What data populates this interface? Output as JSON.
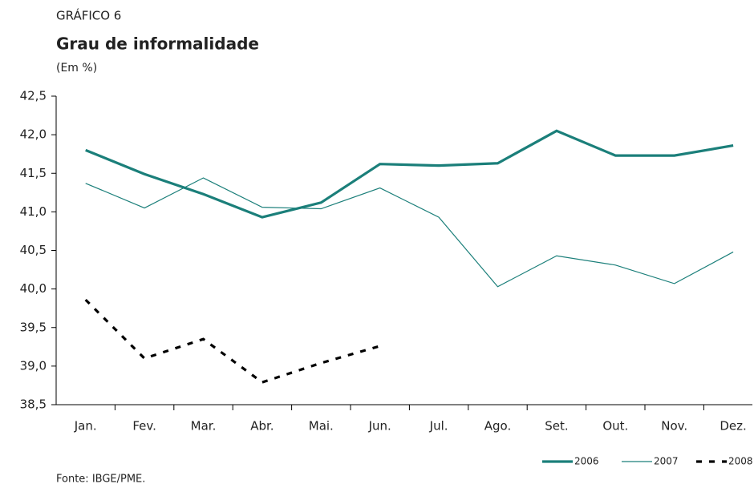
{
  "chart_data": {
    "type": "line",
    "label": "GRÁFICO 6",
    "title": "Grau de informalidade",
    "subtitle": "(Em %)",
    "source": "Fonte: IBGE/PME.",
    "categories": [
      "Jan.",
      "Fev.",
      "Mar.",
      "Abr.",
      "Mai.",
      "Jun.",
      "Jul.",
      "Ago.",
      "Set.",
      "Out.",
      "Nov.",
      "Dez."
    ],
    "series": [
      {
        "name": "2006",
        "color": "#1b7f7a",
        "style": "thick",
        "values": [
          41.8,
          41.49,
          41.23,
          40.93,
          41.12,
          41.62,
          41.6,
          41.63,
          42.05,
          41.73,
          41.73,
          41.86
        ]
      },
      {
        "name": "2007",
        "color": "#1b7f7a",
        "style": "thin",
        "values": [
          41.37,
          41.05,
          41.44,
          41.06,
          41.04,
          41.31,
          40.93,
          40.03,
          40.43,
          40.31,
          40.07,
          40.48
        ]
      },
      {
        "name": "2008",
        "color": "#000000",
        "style": "dashed",
        "values": [
          39.86,
          39.1,
          39.35,
          38.79,
          39.04,
          39.26,
          null,
          null,
          null,
          null,
          null,
          null
        ]
      }
    ],
    "ylim": [
      38.5,
      42.5
    ],
    "yticks": [
      {
        "value": 38.5,
        "label": "38,5"
      },
      {
        "value": 39,
        "label": "39,0"
      },
      {
        "value": 39.5,
        "label": "39,5"
      },
      {
        "value": 40,
        "label": "40,0"
      },
      {
        "value": 40.5,
        "label": "40,5"
      },
      {
        "value": 41,
        "label": "41,0"
      },
      {
        "value": 41.5,
        "label": "41,5"
      },
      {
        "value": 42,
        "label": "42,0"
      },
      {
        "value": 42.5,
        "label": "42,5"
      }
    ],
    "legend": "bottom-right"
  }
}
